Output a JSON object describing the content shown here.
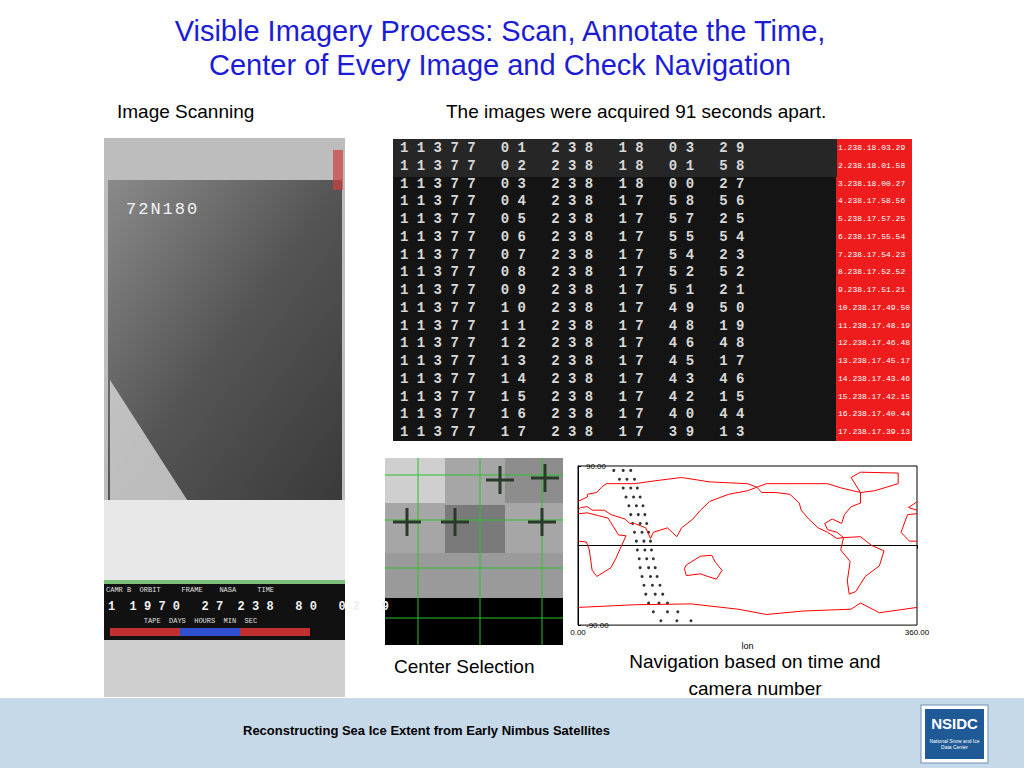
{
  "slide": {
    "title_lines": [
      "Visible Imagery Process: Scan, Annotate the Time,",
      "Center of Every Image and Check Navigation"
    ],
    "image_scanning": "Image Scanning",
    "interval_note": "The images were acquired 91 seconds apart.",
    "center_selection": "Center Selection",
    "navigation_lines": [
      "Navigation based on time and",
      "camera number"
    ],
    "footer": "Reconstructing Sea Ice Extent from Early Nimbus Satellites",
    "logo": {
      "text": "NSIDC",
      "subtext": "National Snow and Ice Data Center"
    }
  },
  "film_left": {
    "frame_id": "72N180",
    "header": "CAMR B  ORBIT     FRAME    NASA     TIME",
    "digits": "1  1 9 7 0   2 7  2 3 8   8 0   0 2   9",
    "footer": "         TAPE  DAYS  HOURS  MIN  SEC"
  },
  "film_strip": {
    "rows": [
      "1 1 3 7 7   0 1   2 3 8   1 8   0 3   2 9",
      "1 1 3 7 7   0 2   2 3 8   1 8   0 1   5 8",
      "1 1 3 7 7   0 3   2 3 8   1 8   0 0   2 7",
      "1 1 3 7 7   0 4   2 3 8   1 7   5 8   5 6",
      "1 1 3 7 7   0 5   2 3 8   1 7   5 7   2 5",
      "1 1 3 7 7   0 6   2 3 8   1 7   5 5   5 4",
      "1 1 3 7 7   0 7   2 3 8   1 7   5 4   2 3",
      "1 1 3 7 7   0 8   2 3 8   1 7   5 2   5 2",
      "1 1 3 7 7   0 9   2 3 8   1 7   5 1   2 1",
      "1 1 3 7 7   1 0   2 3 8   1 7   4 9   5 0",
      "1 1 3 7 7   1 1   2 3 8   1 7   4 8   1 9",
      "1 1 3 7 7   1 2   2 3 8   1 7   4 6   4 8",
      "1 1 3 7 7   1 3   2 3 8   1 7   4 5   1 7",
      "1 1 3 7 7   1 4   2 3 8   1 7   4 3   4 6",
      "1 1 3 7 7   1 5   2 3 8   1 7   4 2   1 5",
      "1 1 3 7 7   1 6   2 3 8   1 7   4 0   4 4",
      "1 1 3 7 7   1 7   2 3 8   1 7   3 9   1 3"
    ],
    "timestamps": [
      "1.238.18.03.29",
      "2.238.18.01.58",
      "3.238.18.00.27",
      "4.238.17.58.56",
      "5.238.17.57.25",
      "6.238.17.55.54",
      "7.238.17.54.23",
      "8.238.17.52.52",
      "9.238.17.51.21",
      "10.238.17.49.50",
      "11.238.17.48.19",
      "12.238.17.46.48",
      "13.238.17.45.17",
      "14.238.17.43.46",
      "15.238.17.42.15",
      "16.238.17.40.44",
      "17.238.17.39.13"
    ]
  },
  "chart_data": {
    "type": "scatter",
    "xlabel": "lon",
    "xlim": [
      0,
      360
    ],
    "ylim": [
      -90,
      90
    ],
    "xticks": [
      {
        "value": 0,
        "label": "0.00"
      },
      {
        "value": 360,
        "label": "360.00"
      }
    ],
    "yticks": [
      {
        "value": -90,
        "label": "-90.00"
      },
      {
        "value": 90,
        "label": "90.00"
      }
    ],
    "grid": false,
    "color": "#000000",
    "marker": "circle",
    "x": [
      38,
      44,
      48,
      51,
      54,
      56,
      58,
      60,
      62,
      63,
      65,
      66,
      68,
      70,
      72,
      75,
      80,
      88,
      48,
      52,
      56,
      59,
      62,
      64,
      66,
      68,
      70,
      71,
      73,
      75,
      77,
      79,
      82,
      86,
      95,
      105,
      56,
      60,
      63,
      66,
      69,
      71,
      73,
      75,
      77,
      78,
      80,
      82,
      84,
      87,
      90,
      95,
      106,
      120
    ],
    "values": [
      85,
      75,
      65,
      55,
      45,
      35,
      25,
      15,
      5,
      -5,
      -15,
      -25,
      -35,
      -45,
      -55,
      -65,
      -75,
      -85,
      85,
      75,
      65,
      55,
      45,
      35,
      25,
      15,
      5,
      -5,
      -15,
      -25,
      -35,
      -45,
      -55,
      -65,
      -75,
      -85,
      85,
      75,
      65,
      55,
      45,
      35,
      25,
      15,
      5,
      -5,
      -15,
      -25,
      -35,
      -45,
      -55,
      -65,
      -75,
      -85
    ],
    "coastlines": {
      "color": "#ff0000",
      "lines": [
        [
          [
            0,
            36
          ],
          [
            10,
            37
          ],
          [
            32,
            31
          ],
          [
            43,
            12
          ],
          [
            51,
            11
          ],
          [
            40,
            -15
          ],
          [
            35,
            -25
          ],
          [
            20,
            -35
          ],
          [
            15,
            -28
          ],
          [
            12,
            -5
          ],
          [
            9,
            4
          ],
          [
            0,
            5
          ]
        ],
        [
          [
            360,
            5
          ],
          [
            352,
            5
          ],
          [
            343,
            15
          ],
          [
            350,
            35
          ],
          [
            360,
            36
          ]
        ],
        [
          [
            0,
            50
          ],
          [
            10,
            55
          ],
          [
            10,
            58
          ],
          [
            20,
            60
          ],
          [
            25,
            66
          ],
          [
            30,
            70
          ],
          [
            60,
            70
          ],
          [
            80,
            73
          ],
          [
            110,
            77
          ],
          [
            140,
            72
          ],
          [
            180,
            70
          ],
          [
            190,
            66
          ],
          [
            180,
            62
          ],
          [
            160,
            58
          ],
          [
            140,
            50
          ],
          [
            130,
            40
          ],
          [
            122,
            30
          ],
          [
            110,
            20
          ],
          [
            105,
            10
          ],
          [
            100,
            15
          ],
          [
            95,
            20
          ],
          [
            80,
            15
          ],
          [
            77,
            8
          ],
          [
            72,
            20
          ],
          [
            60,
            25
          ],
          [
            55,
            25
          ],
          [
            50,
            30
          ],
          [
            35,
            35
          ],
          [
            28,
            40
          ],
          [
            15,
            40
          ],
          [
            10,
            44
          ],
          [
            3,
            43
          ],
          [
            0,
            40
          ]
        ],
        [
          [
            360,
            40
          ],
          [
            351,
            43
          ],
          [
            358,
            48
          ],
          [
            360,
            50
          ]
        ],
        [
          [
            190,
            66
          ],
          [
            200,
            70
          ],
          [
            220,
            70
          ],
          [
            240,
            70
          ],
          [
            265,
            70
          ],
          [
            280,
            65
          ],
          [
            300,
            60
          ],
          [
            300,
            48
          ],
          [
            290,
            44
          ],
          [
            283,
            35
          ],
          [
            280,
            25
          ],
          [
            270,
            30
          ],
          [
            262,
            25
          ],
          [
            265,
            18
          ],
          [
            275,
            15
          ],
          [
            282,
            9
          ],
          [
            275,
            8
          ],
          [
            265,
            15
          ],
          [
            255,
            20
          ],
          [
            245,
            30
          ],
          [
            237,
            40
          ],
          [
            235,
            48
          ],
          [
            225,
            58
          ],
          [
            210,
            60
          ],
          [
            195,
            60
          ],
          [
            190,
            66
          ]
        ],
        [
          [
            300,
            60
          ],
          [
            315,
            62
          ],
          [
            340,
            70
          ],
          [
            340,
            82
          ],
          [
            300,
            83
          ],
          [
            290,
            77
          ],
          [
            300,
            60
          ]
        ],
        [
          [
            282,
            9
          ],
          [
            300,
            10
          ],
          [
            312,
            0
          ],
          [
            325,
            -6
          ],
          [
            320,
            -23
          ],
          [
            305,
            -35
          ],
          [
            295,
            -52
          ],
          [
            288,
            -55
          ],
          [
            286,
            -40
          ],
          [
            289,
            -18
          ],
          [
            279,
            -5
          ],
          [
            282,
            9
          ]
        ],
        [
          [
            115,
            -22
          ],
          [
            130,
            -12
          ],
          [
            142,
            -11
          ],
          [
            146,
            -19
          ],
          [
            153,
            -28
          ],
          [
            147,
            -38
          ],
          [
            138,
            -35
          ],
          [
            130,
            -32
          ],
          [
            115,
            -34
          ],
          [
            113,
            -26
          ],
          [
            115,
            -22
          ]
        ],
        [
          [
            0,
            -70
          ],
          [
            60,
            -67
          ],
          [
            120,
            -66
          ],
          [
            170,
            -72
          ],
          [
            200,
            -78
          ],
          [
            240,
            -74
          ],
          [
            290,
            -72
          ],
          [
            300,
            -65
          ],
          [
            320,
            -76
          ],
          [
            360,
            -70
          ]
        ]
      ]
    }
  }
}
